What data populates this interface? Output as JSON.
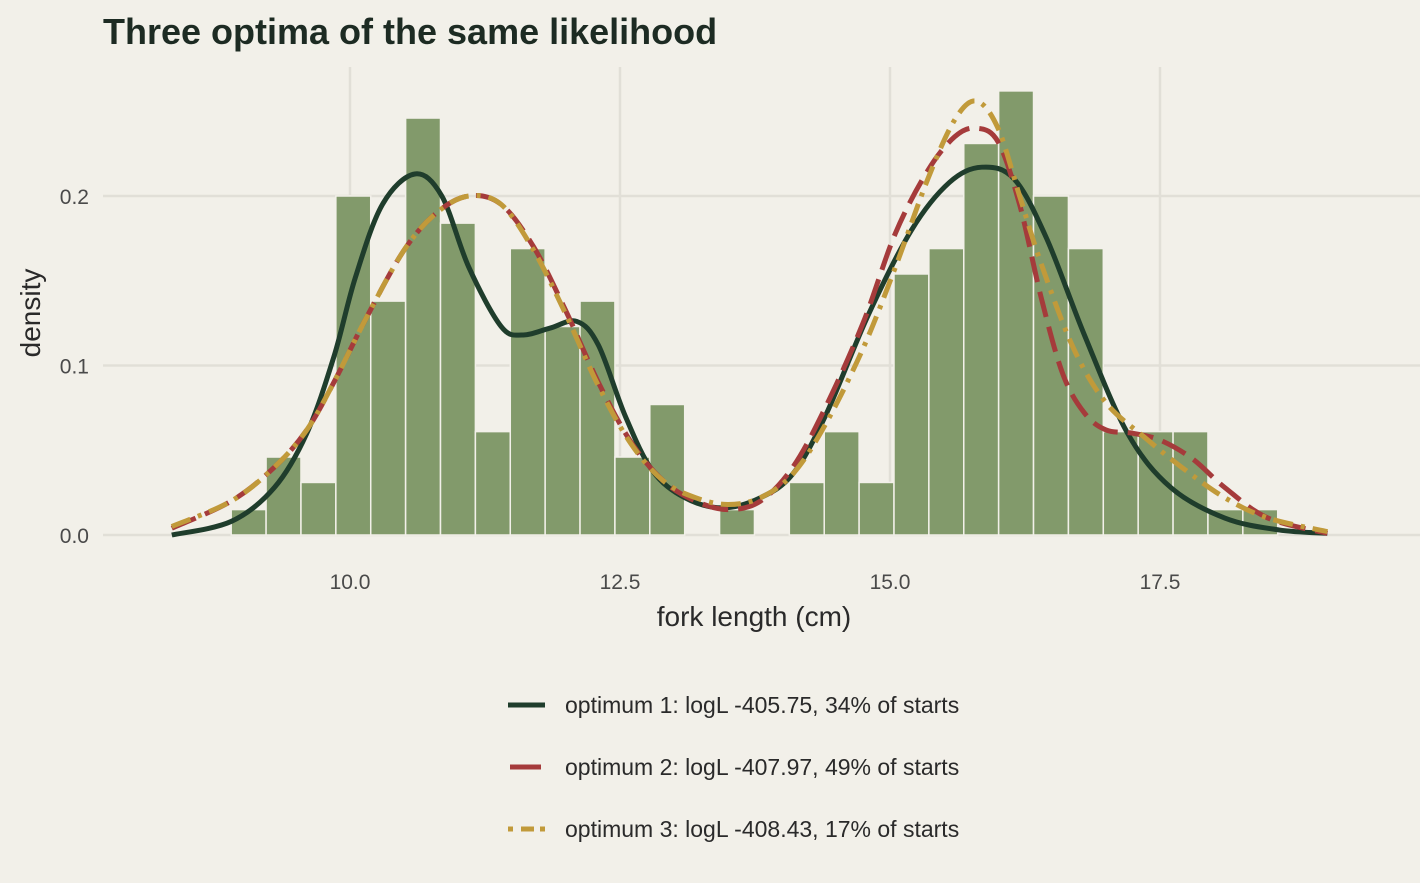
{
  "chart_data": {
    "type": "histogram",
    "title": "Three optima of the same likelihood",
    "xlabel": "fork length (cm)",
    "ylabel": "density",
    "xlim": [
      7.8,
      19.6
    ],
    "ylim": [
      0,
      0.272
    ],
    "x_ticks": [
      10.0,
      12.5,
      15.0,
      17.5
    ],
    "x_tick_labels": [
      "10.0",
      "12.5",
      "15.0",
      "17.5"
    ],
    "y_ticks": [
      0.0,
      0.1,
      0.2
    ],
    "y_tick_labels": [
      "0.0",
      "0.1",
      "0.2"
    ],
    "grid": true,
    "legend_position": "bottom",
    "bar_color": "#829a6b",
    "bins": {
      "start": 8.9,
      "width": 0.323,
      "values": [
        0.015,
        0.046,
        0.031,
        0.2,
        0.138,
        0.246,
        0.184,
        0.061,
        0.169,
        0.123,
        0.138,
        0.046,
        0.077,
        0.0,
        0.015,
        0.0,
        0.031,
        0.061,
        0.031,
        0.154,
        0.169,
        0.231,
        0.262,
        0.2,
        0.169,
        0.061,
        0.061,
        0.061,
        0.015,
        0.015
      ]
    },
    "series": [
      {
        "name": "optimum 1: logL -405.75, 34% of starts",
        "color": "#1f3d2c",
        "dash": "solid",
        "x": [
          8.35,
          8.9,
          9.3,
          9.6,
          9.85,
          10.05,
          10.3,
          10.6,
          10.85,
          11.1,
          11.4,
          11.6,
          11.85,
          12.1,
          12.3,
          12.55,
          12.8,
          13.1,
          13.45,
          13.8,
          14.1,
          14.4,
          14.8,
          15.2,
          15.55,
          15.85,
          16.15,
          16.45,
          16.8,
          17.2,
          17.6,
          18.1,
          18.6,
          19.05
        ],
        "y": [
          0.0,
          0.008,
          0.028,
          0.06,
          0.105,
          0.152,
          0.195,
          0.213,
          0.2,
          0.158,
          0.123,
          0.118,
          0.122,
          0.126,
          0.112,
          0.07,
          0.038,
          0.022,
          0.016,
          0.022,
          0.036,
          0.07,
          0.13,
          0.18,
          0.208,
          0.217,
          0.21,
          0.175,
          0.118,
          0.06,
          0.028,
          0.01,
          0.003,
          0.001
        ]
      },
      {
        "name": "optimum 2: logL -407.97, 49% of starts",
        "color": "#a53b3b",
        "dash": "long-dash",
        "x": [
          8.35,
          8.9,
          9.3,
          9.6,
          9.85,
          10.15,
          10.5,
          10.8,
          11.1,
          11.4,
          11.7,
          12.0,
          12.3,
          12.6,
          12.9,
          13.2,
          13.5,
          13.8,
          14.1,
          14.4,
          14.75,
          15.05,
          15.35,
          15.6,
          15.8,
          16.0,
          16.2,
          16.4,
          16.6,
          16.8,
          17.0,
          17.25,
          17.5,
          17.8,
          18.1,
          18.5,
          19.05
        ],
        "y": [
          0.004,
          0.02,
          0.04,
          0.062,
          0.09,
          0.128,
          0.168,
          0.19,
          0.2,
          0.195,
          0.17,
          0.132,
          0.09,
          0.055,
          0.032,
          0.02,
          0.015,
          0.02,
          0.04,
          0.075,
          0.125,
          0.178,
          0.215,
          0.235,
          0.24,
          0.232,
          0.195,
          0.14,
          0.095,
          0.072,
          0.062,
          0.06,
          0.056,
          0.045,
          0.028,
          0.01,
          0.001
        ]
      },
      {
        "name": "optimum 3: logL -408.43, 17% of starts",
        "color": "#c19a3a",
        "dash": "dash-dot",
        "x": [
          8.35,
          8.9,
          9.3,
          9.6,
          9.85,
          10.15,
          10.5,
          10.8,
          11.1,
          11.4,
          11.7,
          12.0,
          12.3,
          12.6,
          12.9,
          13.2,
          13.5,
          13.8,
          14.1,
          14.4,
          14.75,
          15.05,
          15.35,
          15.6,
          15.8,
          16.0,
          16.2,
          16.4,
          16.7,
          17.0,
          17.35,
          17.7,
          18.1,
          18.5,
          19.05
        ],
        "y": [
          0.005,
          0.02,
          0.04,
          0.062,
          0.09,
          0.128,
          0.168,
          0.19,
          0.2,
          0.195,
          0.168,
          0.13,
          0.088,
          0.054,
          0.032,
          0.022,
          0.018,
          0.022,
          0.036,
          0.065,
          0.11,
          0.158,
          0.21,
          0.245,
          0.256,
          0.24,
          0.2,
          0.16,
          0.11,
          0.078,
          0.058,
          0.04,
          0.022,
          0.01,
          0.002
        ]
      }
    ]
  }
}
